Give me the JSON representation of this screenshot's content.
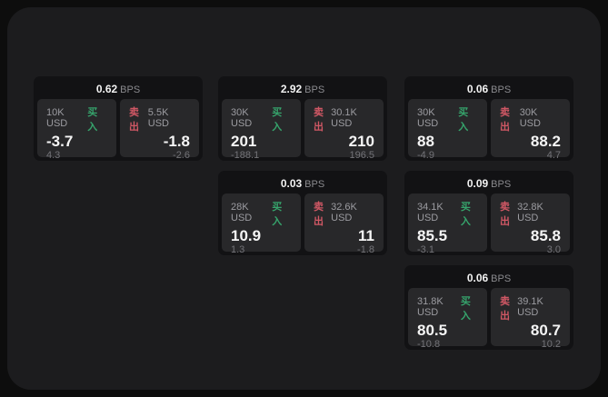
{
  "colors": {
    "background": "#0d0d0d",
    "window": "#1c1c1e",
    "card": "#121214",
    "tile": "#28282a",
    "buy_green": "#36a46c",
    "sell_red": "#d15865",
    "text_primary": "#f5f5f5",
    "text_secondary": "#9c9ca1",
    "text_muted": "#737378"
  },
  "labels": {
    "bps_unit": "BPS",
    "buy": "买入",
    "sell": "卖出"
  },
  "cards": [
    {
      "bps_value": "0.62",
      "buy": {
        "amount": "10K USD",
        "price": "-3.7",
        "delta": "4.3"
      },
      "sell": {
        "amount": "5.5K USD",
        "price": "-1.8",
        "delta": "-2.6"
      }
    },
    {
      "bps_value": "2.92",
      "buy": {
        "amount": "30K USD",
        "price": "201",
        "delta": "-188.1"
      },
      "sell": {
        "amount": "30.1K USD",
        "price": "210",
        "delta": "196.5"
      }
    },
    {
      "bps_value": "0.06",
      "buy": {
        "amount": "30K USD",
        "price": "88",
        "delta": "-4.9"
      },
      "sell": {
        "amount": "30K USD",
        "price": "88.2",
        "delta": "4.7"
      }
    },
    {
      "bps_value": "0.03",
      "buy": {
        "amount": "28K USD",
        "price": "10.9",
        "delta": "1.3"
      },
      "sell": {
        "amount": "32.6K USD",
        "price": "11",
        "delta": "-1.8"
      }
    },
    {
      "bps_value": "0.09",
      "buy": {
        "amount": "34.1K USD",
        "price": "85.5",
        "delta": "-3.1"
      },
      "sell": {
        "amount": "32.8K USD",
        "price": "85.8",
        "delta": "3.0"
      }
    },
    {
      "bps_value": "0.06",
      "buy": {
        "amount": "31.8K USD",
        "price": "80.5",
        "delta": "-10.8"
      },
      "sell": {
        "amount": "39.1K USD",
        "price": "80.7",
        "delta": "10.2"
      }
    }
  ]
}
